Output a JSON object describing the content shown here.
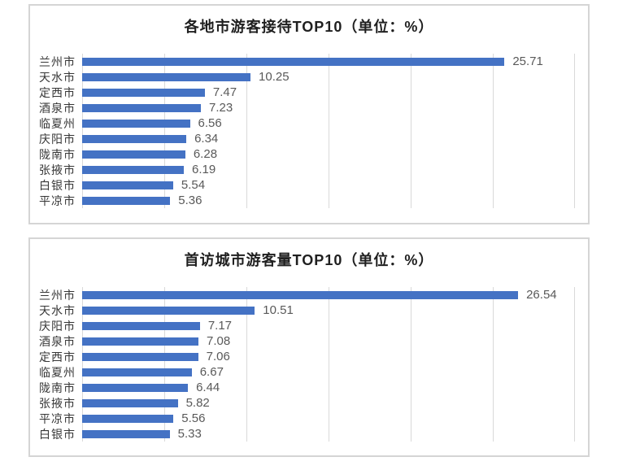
{
  "styles": {
    "bar_color": "#4472c4",
    "gridline_color": "#d9d9d9",
    "panel_border_color": "#d5d5d5",
    "title_color": "#1f1f1f",
    "category_label_color": "#363636",
    "value_label_color": "#595959",
    "background": "#ffffff"
  },
  "chart_data": [
    {
      "type": "bar",
      "orientation": "horizontal",
      "title": "各地市游客接待TOP10（单位：%）",
      "categories": [
        "兰州市",
        "天水市",
        "定西市",
        "酒泉市",
        "临夏州",
        "庆阳市",
        "陇南市",
        "张掖市",
        "白银市",
        "平凉市"
      ],
      "values": [
        25.71,
        10.25,
        7.47,
        7.23,
        6.56,
        6.34,
        6.28,
        6.19,
        5.54,
        5.36
      ],
      "value_labels": [
        "25.71",
        "10.25",
        "7.47",
        "7.23",
        "6.56",
        "6.34",
        "6.28",
        "6.19",
        "5.54",
        "5.36"
      ],
      "xlabel": "",
      "ylabel": "",
      "xlim": [
        0,
        30
      ],
      "grid_interval": 5,
      "grid": "vertical-only",
      "legend": "none",
      "data_labels": "outside-end"
    },
    {
      "type": "bar",
      "orientation": "horizontal",
      "title": "首访城市游客量TOP10（单位：%）",
      "categories": [
        "兰州市",
        "天水市",
        "庆阳市",
        "酒泉市",
        "定西市",
        "临夏州",
        "陇南市",
        "张掖市",
        "平凉市",
        "白银市"
      ],
      "values": [
        26.54,
        10.51,
        7.17,
        7.08,
        7.06,
        6.67,
        6.44,
        5.82,
        5.56,
        5.33
      ],
      "value_labels": [
        "26.54",
        "10.51",
        "7.17",
        "7.08",
        "7.06",
        "6.67",
        "6.44",
        "5.82",
        "5.56",
        "5.33"
      ],
      "xlabel": "",
      "ylabel": "",
      "xlim": [
        0,
        30
      ],
      "grid_interval": 5,
      "grid": "vertical-only",
      "legend": "none",
      "data_labels": "outside-end"
    }
  ]
}
